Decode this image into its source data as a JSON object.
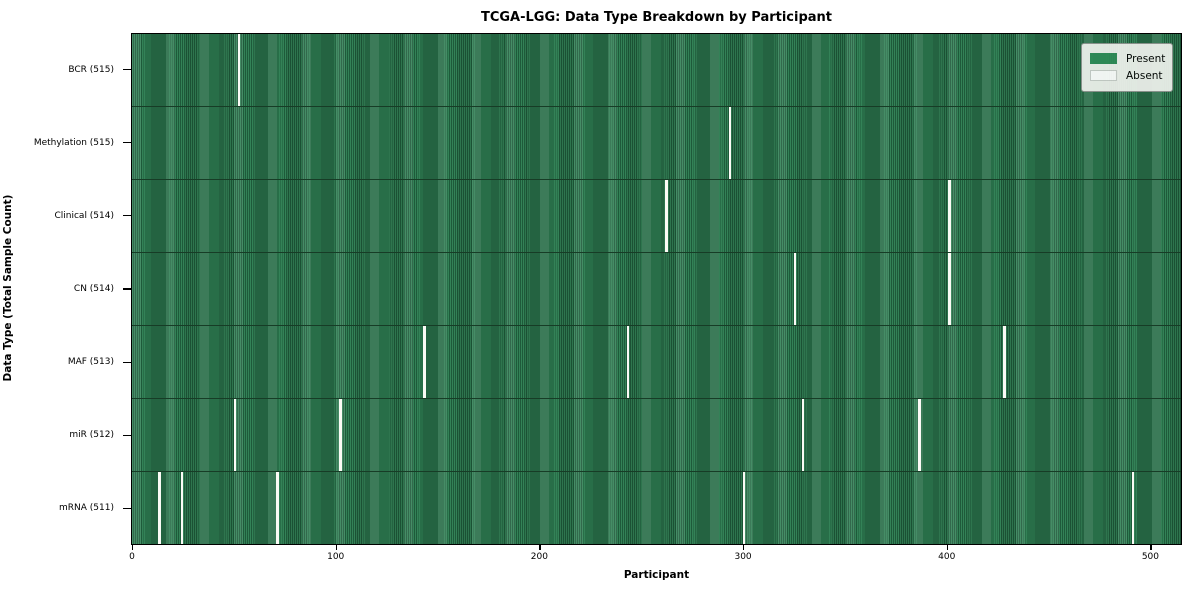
{
  "chart_data": {
    "type": "heatmap",
    "title": "TCGA-LGG: Data Type Breakdown by Participant",
    "xlabel": "Participant",
    "ylabel": "Data Type (Total Sample Count)",
    "n_participants": 516,
    "x_ticks": [
      0,
      100,
      200,
      300,
      400,
      500
    ],
    "grid": false,
    "legend_position": "upper right",
    "colors": {
      "present": "#2e8b57",
      "present_edge": "#1e5a3a",
      "absent": "#fbfbf6",
      "legend_bg": "#eef1ec",
      "legend_border": "#8f948f"
    },
    "legend": [
      {
        "label": "Present",
        "color": "#2e8b57"
      },
      {
        "label": "Absent",
        "color": "#ffffff"
      }
    ],
    "rows": [
      {
        "label": "BCR (515)",
        "data_type": "BCR",
        "present_count": 515,
        "absent_participants": [
          52
        ]
      },
      {
        "label": "Methylation (515)",
        "data_type": "Methylation",
        "present_count": 515,
        "absent_participants": [
          293
        ]
      },
      {
        "label": "Clinical (514)",
        "data_type": "Clinical",
        "present_count": 514,
        "absent_participants": [
          262,
          401
        ]
      },
      {
        "label": "CN (514)",
        "data_type": "CN",
        "present_count": 514,
        "absent_participants": [
          325,
          401
        ]
      },
      {
        "label": "MAF (513)",
        "data_type": "MAF",
        "present_count": 513,
        "absent_participants": [
          143,
          243,
          428
        ]
      },
      {
        "label": "miR (512)",
        "data_type": "miR",
        "present_count": 512,
        "absent_participants": [
          50,
          102,
          329,
          386
        ]
      },
      {
        "label": "mRNA (511)",
        "data_type": "mRNA",
        "present_count": 511,
        "absent_participants": [
          13,
          24,
          71,
          300,
          491
        ]
      }
    ]
  }
}
